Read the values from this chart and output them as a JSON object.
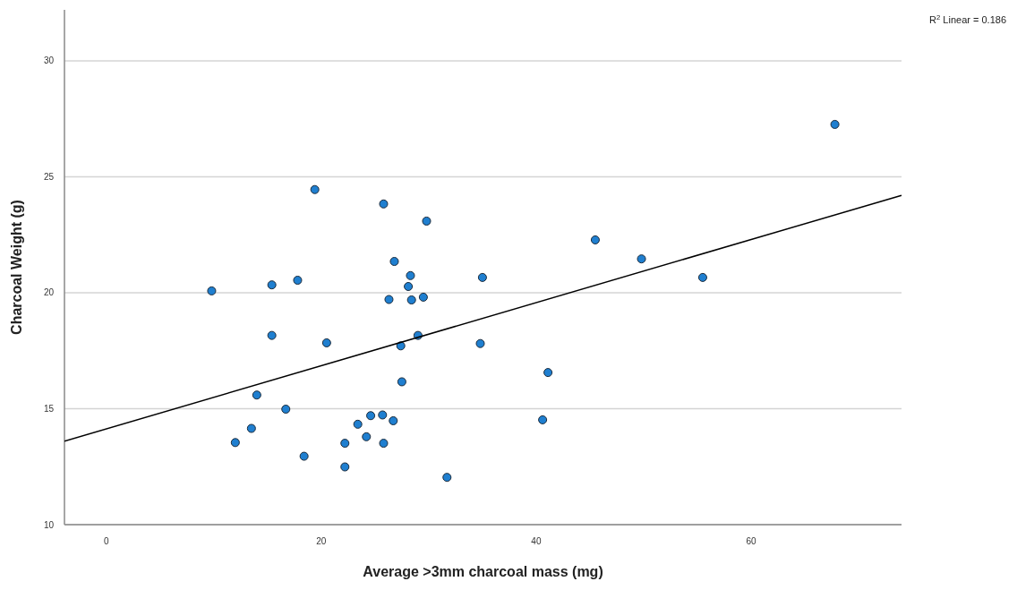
{
  "chart_data": {
    "type": "scatter",
    "xlabel": "Average >3mm charcoal mass (mg)",
    "ylabel": "Charcoal Weight (g)",
    "annotations": [
      "R$^{2}$ Linear = 0.186"
    ],
    "xlim": [
      -3.9,
      74
    ],
    "xticks": [
      0,
      20,
      40,
      60
    ],
    "ylim": [
      10,
      32.2
    ],
    "yticks": [
      10,
      15,
      20,
      25,
      30
    ],
    "grid": "y",
    "marker": "circle",
    "series": [
      {
        "color": "#1f7fd0",
        "x": [
          19.4,
          25.8,
          29.8,
          26.8,
          28.3,
          28.1,
          15.4,
          17.8,
          35.0,
          9.8,
          26.3,
          28.4,
          29.5,
          15.4,
          20.5,
          29.0,
          27.4,
          34.8,
          41.1,
          27.5,
          14.0,
          16.7,
          13.5,
          12.0,
          24.6,
          25.7,
          26.7,
          23.4,
          24.2,
          22.2,
          25.8,
          18.4,
          22.2,
          31.7,
          40.6,
          45.5,
          49.8,
          55.5,
          67.8
        ],
        "values": [
          24.45,
          23.83,
          23.09,
          21.35,
          20.74,
          20.27,
          20.34,
          20.54,
          20.66,
          20.08,
          19.71,
          19.69,
          19.81,
          18.16,
          17.84,
          18.16,
          17.71,
          17.81,
          16.56,
          16.16,
          15.59,
          14.98,
          14.15,
          13.54,
          14.7,
          14.73,
          14.48,
          14.33,
          13.79,
          13.51,
          13.51,
          12.95,
          12.49,
          12.04,
          14.52,
          22.28,
          21.46,
          20.66,
          27.26
        ]
      },
      {
        "type": "line",
        "color": "#000000",
        "line_style": "solid",
        "marker": "none",
        "x": [
          -3.9,
          74
        ],
        "values": [
          13.6,
          24.2
        ]
      }
    ]
  }
}
